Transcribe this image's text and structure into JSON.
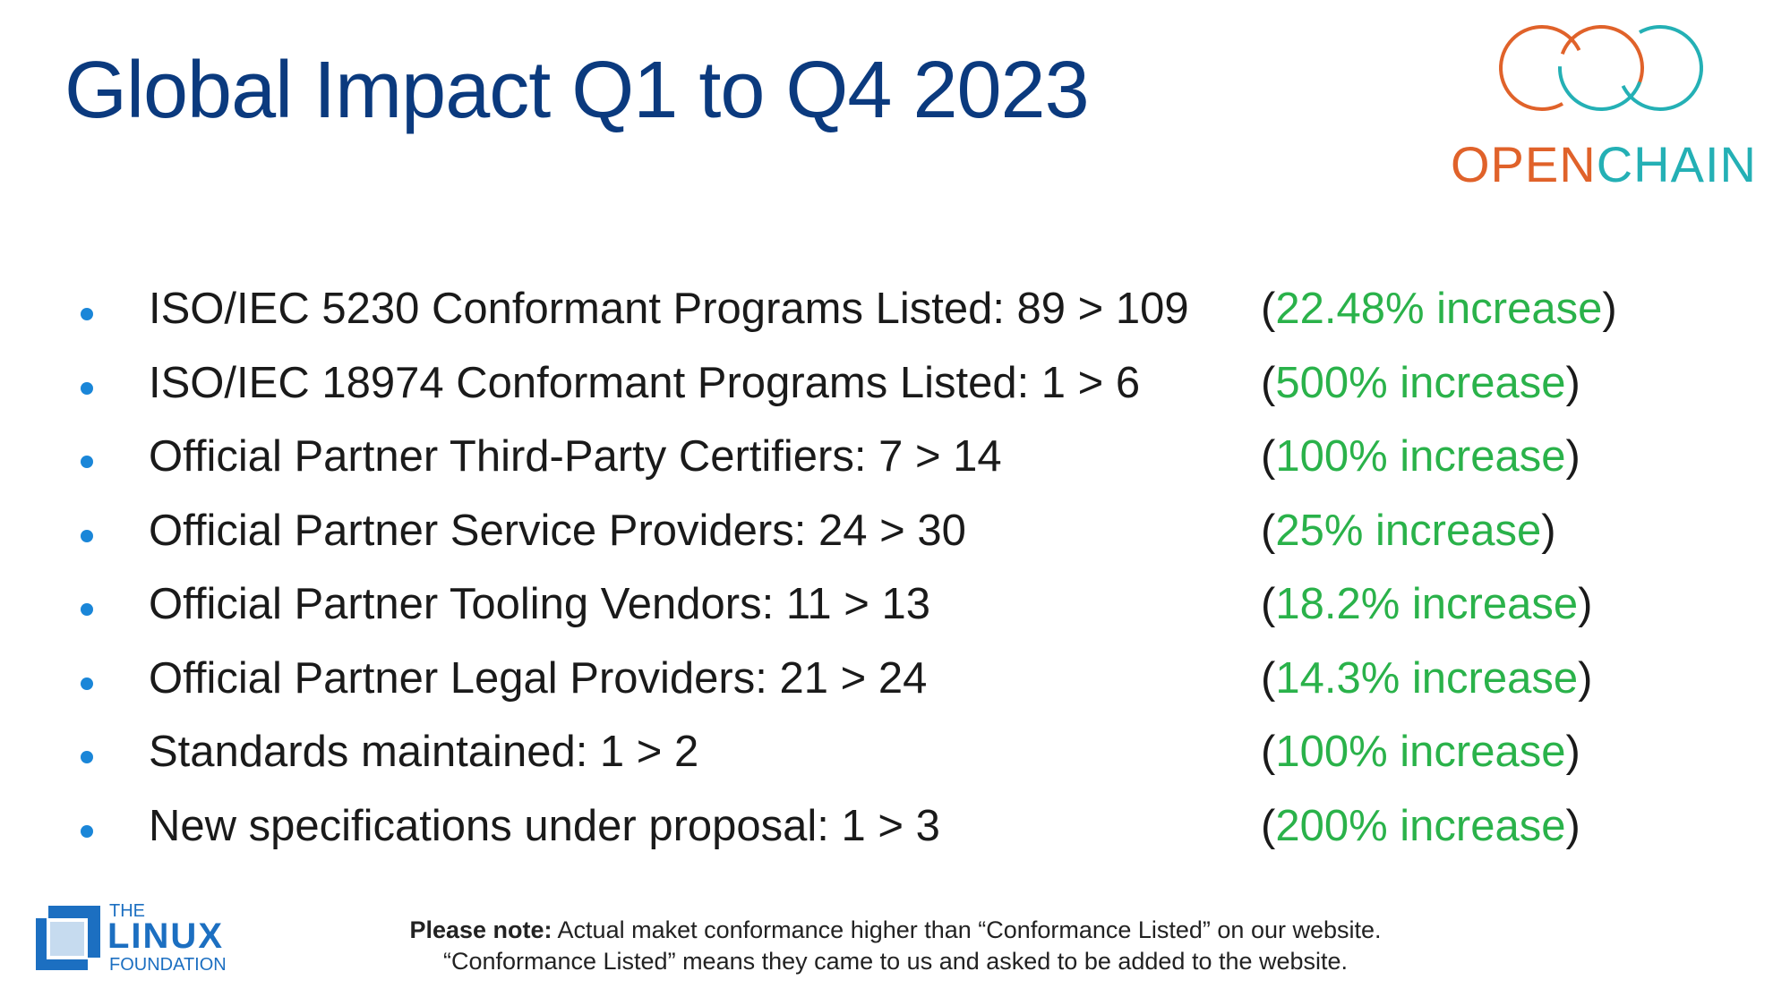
{
  "slide": {
    "title": "Global Impact Q1 to Q4 2023"
  },
  "logo": {
    "name": "openchain-logo",
    "text_part1": "OPEN",
    "text_part2": "CHAIN",
    "colors": {
      "orange": "#e0622a",
      "teal": "#24b0b5"
    }
  },
  "stats": [
    {
      "label": "ISO/IEC 5230 Conformant Programs Listed: 89 > 109",
      "change": "22.48% increase"
    },
    {
      "label": "ISO/IEC 18974 Conformant Programs Listed: 1 > 6",
      "change": "500% increase"
    },
    {
      "label": "Official Partner Third-Party Certifiers: 7 > 14",
      "change": "100% increase"
    },
    {
      "label": "Official Partner Service Providers: 24 > 30",
      "change": "25% increase"
    },
    {
      "label": "Official Partner Tooling Vendors: 11 > 13",
      "change": "18.2% increase"
    },
    {
      "label": "Official Partner Legal Providers: 21 > 24",
      "change": "14.3% increase"
    },
    {
      "label": "Standards maintained: 1 > 2",
      "change": "100% increase"
    },
    {
      "label": "New specifications under proposal: 1 > 3",
      "change": "200% increase"
    }
  ],
  "foundation_logo": {
    "line1": "THE",
    "line2": "LINUX",
    "line3": "FOUNDATION",
    "color": "#1c6fc1"
  },
  "footnote": {
    "bold": "Please note:",
    "line1_rest": " Actual maket conformance higher than “Conformance Listed” on our website.",
    "line2": "“Conformance Listed” means they came to us and asked to be added to the website."
  },
  "colors": {
    "title": "#0b3a7e",
    "bullet": "#1a86d8",
    "increase": "#2ab24a"
  }
}
